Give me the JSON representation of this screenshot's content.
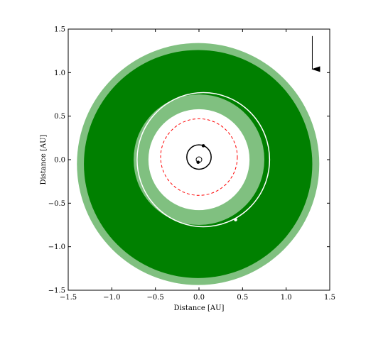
{
  "chart_data": {
    "type": "scatter",
    "title": "",
    "xlabel": "Distance [AU]",
    "ylabel": "Distance [AU]",
    "xlim": [
      -1.5,
      1.5
    ],
    "ylim": [
      -1.5,
      1.5
    ],
    "xticks": [
      -1.5,
      -1.0,
      -0.5,
      0.0,
      0.5,
      1.0,
      1.5
    ],
    "yticks": [
      -1.5,
      -1.0,
      -0.5,
      0.0,
      0.5,
      1.0,
      1.5
    ],
    "xtick_labels": [
      "−1.5",
      "−1.0",
      "−0.5",
      "0.0",
      "0.5",
      "1.0",
      "1.5"
    ],
    "ytick_labels": [
      "−1.5",
      "−1.0",
      "−0.5",
      "0.0",
      "0.5",
      "1.0",
      "1.5"
    ],
    "grid": false,
    "colors": {
      "zone_light": "#80c080",
      "zone_dark": "#008000",
      "orbit_outer": "#ffffff",
      "orbit_middle": "#ff0000",
      "orbit_inner": "#000000",
      "planet_outer": "#ffffff",
      "planet_inner": "#000000"
    },
    "zones": [
      {
        "cx": -0.01,
        "cy": -0.05,
        "r_inner": 0.0,
        "r_outer": 1.39,
        "color": "zone_light"
      },
      {
        "cx": -0.01,
        "cy": -0.05,
        "r_inner": 0.0,
        "r_outer": 1.31,
        "color": "zone_dark"
      },
      {
        "cx": 0.0,
        "cy": 0.0,
        "r_inner": 0.0,
        "r_outer": 0.75,
        "color": "zone_light"
      },
      {
        "cx": 0.0,
        "cy": 0.0,
        "r_inner": 0.0,
        "r_outer": 0.58,
        "color": "white"
      }
    ],
    "orbits": [
      {
        "cx": 0.05,
        "cy": 0.0,
        "rx": 0.76,
        "ry": 0.77,
        "color": "orbit_outer",
        "style": "solid"
      },
      {
        "cx": 0.0,
        "cy": 0.03,
        "rx": 0.44,
        "ry": 0.44,
        "color": "orbit_middle",
        "style": "dashed"
      },
      {
        "cx": 0.0,
        "cy": 0.03,
        "rx": 0.14,
        "ry": 0.14,
        "color": "orbit_inner",
        "style": "solid"
      }
    ],
    "points": [
      {
        "x": 0.0,
        "y": 0.0,
        "kind": "star"
      },
      {
        "x": 0.42,
        "y": -0.69,
        "kind": "planet",
        "color": "planet_outer"
      },
      {
        "x": 0.05,
        "y": 0.16,
        "kind": "planet",
        "color": "planet_inner"
      },
      {
        "x": -0.01,
        "y": -0.03,
        "kind": "planet",
        "color": "planet_inner"
      }
    ],
    "arrow": {
      "x": 1.3,
      "y_start": 1.42,
      "y_end": 1.04,
      "color": "#000000"
    }
  }
}
